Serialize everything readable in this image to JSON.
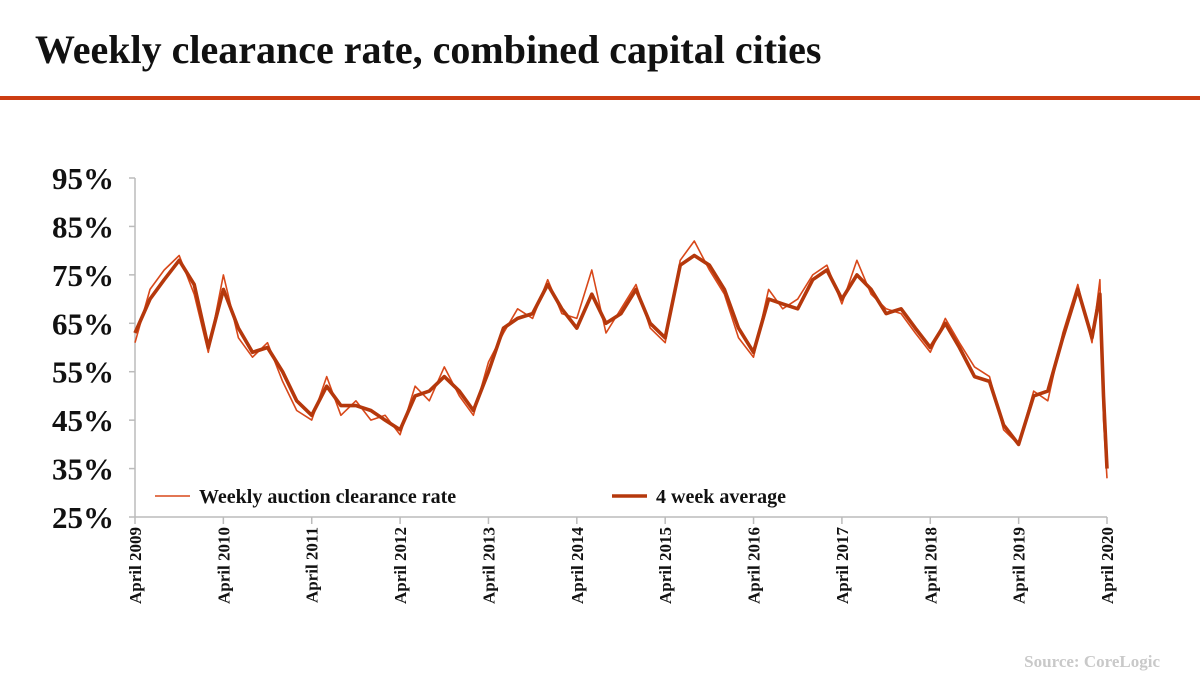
{
  "chart_data": {
    "type": "line",
    "title": "Weekly clearance rate, combined capital cities",
    "source": "Source: CoreLogic",
    "x": [
      2009.25,
      2009.42,
      2009.58,
      2009.75,
      2009.92,
      2010.08,
      2010.25,
      2010.42,
      2010.58,
      2010.75,
      2010.92,
      2011.08,
      2011.25,
      2011.42,
      2011.58,
      2011.75,
      2011.92,
      2012.08,
      2012.25,
      2012.42,
      2012.58,
      2012.75,
      2012.92,
      2013.08,
      2013.25,
      2013.42,
      2013.58,
      2013.75,
      2013.92,
      2014.08,
      2014.25,
      2014.42,
      2014.58,
      2014.75,
      2014.92,
      2015.08,
      2015.25,
      2015.42,
      2015.58,
      2015.75,
      2015.92,
      2016.08,
      2016.25,
      2016.42,
      2016.58,
      2016.75,
      2016.92,
      2017.08,
      2017.25,
      2017.42,
      2017.58,
      2017.75,
      2017.92,
      2018.08,
      2018.25,
      2018.42,
      2018.58,
      2018.75,
      2018.92,
      2019.08,
      2019.25,
      2019.42,
      2019.58,
      2019.75,
      2019.92,
      2020.08,
      2020.17,
      2020.21,
      2020.25
    ],
    "series": [
      {
        "name": "Weekly auction clearance rate",
        "color": "#d8481a",
        "values": [
          61,
          72,
          76,
          79,
          71,
          59,
          75,
          62,
          58,
          61,
          53,
          47,
          45,
          54,
          46,
          49,
          45,
          46,
          42,
          52,
          49,
          56,
          50,
          46,
          57,
          63,
          68,
          66,
          74,
          67,
          66,
          76,
          63,
          68,
          73,
          64,
          61,
          78,
          82,
          76,
          71,
          62,
          58,
          72,
          68,
          70,
          75,
          77,
          69,
          78,
          71,
          68,
          67,
          63,
          59,
          66,
          61,
          56,
          54,
          43,
          40,
          51,
          49,
          63,
          73,
          61,
          74,
          45,
          33
        ]
      },
      {
        "name": "4 week average",
        "color": "#b5380c",
        "values": [
          63,
          70,
          74,
          78,
          73,
          60,
          72,
          64,
          59,
          60,
          55,
          49,
          46,
          52,
          48,
          48,
          47,
          45,
          43,
          50,
          51,
          54,
          51,
          47,
          55,
          64,
          66,
          67,
          73,
          68,
          64,
          71,
          65,
          67,
          72,
          65,
          62,
          77,
          79,
          77,
          72,
          64,
          59,
          70,
          69,
          68,
          74,
          76,
          70,
          75,
          72,
          67,
          68,
          64,
          60,
          65,
          60,
          54,
          53,
          44,
          40,
          50,
          51,
          62,
          72,
          62,
          71,
          50,
          35
        ]
      }
    ],
    "xlim": [
      2009.25,
      2020.25
    ],
    "xticks": [
      {
        "value": 2009.25,
        "label": "April 2009"
      },
      {
        "value": 2010.25,
        "label": "April 2010"
      },
      {
        "value": 2011.25,
        "label": "April 2011"
      },
      {
        "value": 2012.25,
        "label": "April 2012"
      },
      {
        "value": 2013.25,
        "label": "April 2013"
      },
      {
        "value": 2014.25,
        "label": "April 2014"
      },
      {
        "value": 2015.25,
        "label": "April 2015"
      },
      {
        "value": 2016.25,
        "label": "April 2016"
      },
      {
        "value": 2017.25,
        "label": "April 2017"
      },
      {
        "value": 2018.25,
        "label": "April 2018"
      },
      {
        "value": 2019.25,
        "label": "April 2019"
      },
      {
        "value": 2020.25,
        "label": "April 2020"
      }
    ],
    "ylim": [
      25,
      95
    ],
    "yticks": [
      {
        "value": 25,
        "label": "25%"
      },
      {
        "value": 35,
        "label": "35%"
      },
      {
        "value": 45,
        "label": "45%"
      },
      {
        "value": 55,
        "label": "55%"
      },
      {
        "value": 65,
        "label": "65%"
      },
      {
        "value": 75,
        "label": "75%"
      },
      {
        "value": 85,
        "label": "85%"
      },
      {
        "value": 95,
        "label": "95%"
      }
    ],
    "grid": false
  }
}
